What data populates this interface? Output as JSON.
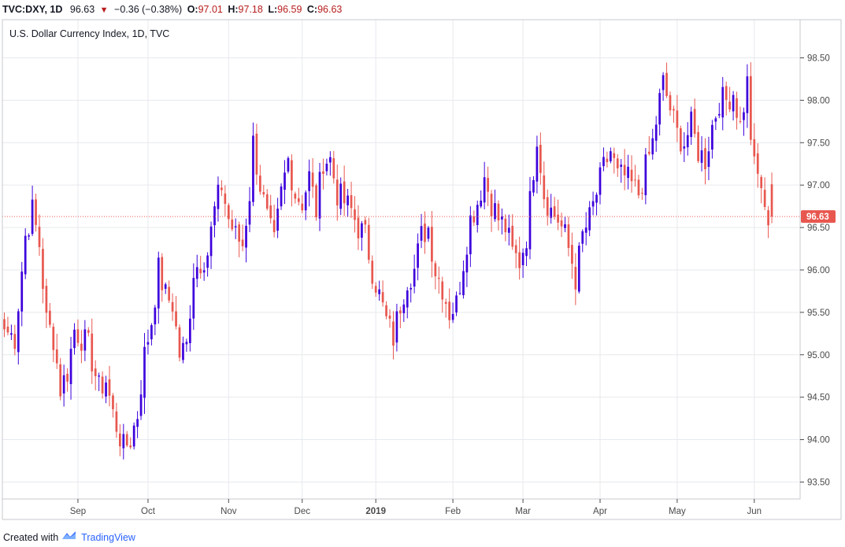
{
  "header": {
    "symbol": "TVC:DXY, 1D",
    "price": "96.63",
    "change": "−0.36 (−0.38%)",
    "open_label": "O:",
    "open": "97.01",
    "high_label": "H:",
    "high": "97.18",
    "low_label": "L:",
    "low": "96.59",
    "close_label": "C:",
    "close": "96.63"
  },
  "footer": {
    "created_with": "Created with",
    "brand": "TradingView"
  },
  "colors": {
    "up": "#3c00dc",
    "down": "#e8574f",
    "grid": "#e6e9ee",
    "price_line": "#e8574f",
    "price_tag": "#e8574f",
    "brand": "#2962ff"
  },
  "chart_data": {
    "type": "candlestick",
    "title": "U.S. Dollar Currency Index, 1D, TVC",
    "ylim": [
      93.3,
      98.95
    ],
    "y_ticks": [
      "98.50",
      "98.00",
      "97.50",
      "97.00",
      "96.50",
      "96.00",
      "95.50",
      "95.00",
      "94.50",
      "94.00",
      "93.50"
    ],
    "x_labels": [
      {
        "text": "Sep",
        "index": 21,
        "bold": false
      },
      {
        "text": "Oct",
        "index": 41,
        "bold": false
      },
      {
        "text": "Nov",
        "index": 64,
        "bold": false
      },
      {
        "text": "Dec",
        "index": 85,
        "bold": false
      },
      {
        "text": "2019",
        "index": 106,
        "bold": true
      },
      {
        "text": "Feb",
        "index": 128,
        "bold": false
      },
      {
        "text": "Mar",
        "index": 148,
        "bold": false
      },
      {
        "text": "Apr",
        "index": 170,
        "bold": false
      },
      {
        "text": "May",
        "index": 192,
        "bold": false
      },
      {
        "text": "Jun",
        "index": 214,
        "bold": false
      }
    ],
    "last_price": 96.63,
    "last_price_label": "96.63",
    "close_key_points": [
      [
        0,
        95.3
      ],
      [
        3,
        95.2
      ],
      [
        6,
        96.4
      ],
      [
        8,
        96.7
      ],
      [
        10,
        96.3
      ],
      [
        12,
        95.4
      ],
      [
        14,
        95.2
      ],
      [
        16,
        94.6
      ],
      [
        18,
        94.8
      ],
      [
        20,
        95.3
      ],
      [
        22,
        95.2
      ],
      [
        24,
        95.1
      ],
      [
        27,
        94.6
      ],
      [
        29,
        94.7
      ],
      [
        31,
        94.3
      ],
      [
        34,
        93.9
      ],
      [
        36,
        94.0
      ],
      [
        38,
        94.3
      ],
      [
        40,
        95.0
      ],
      [
        42,
        95.4
      ],
      [
        44,
        96.0
      ],
      [
        46,
        95.7
      ],
      [
        48,
        95.6
      ],
      [
        50,
        95.0
      ],
      [
        52,
        95.1
      ],
      [
        54,
        96.0
      ],
      [
        56,
        96.1
      ],
      [
        58,
        96.2
      ],
      [
        60,
        96.7
      ],
      [
        62,
        97.0
      ],
      [
        64,
        96.6
      ],
      [
        66,
        96.4
      ],
      [
        68,
        96.3
      ],
      [
        70,
        96.9
      ],
      [
        71,
        97.5
      ],
      [
        73,
        97.0
      ],
      [
        75,
        96.6
      ],
      [
        77,
        96.3
      ],
      [
        79,
        96.9
      ],
      [
        81,
        97.3
      ],
      [
        83,
        96.9
      ],
      [
        85,
        96.8
      ],
      [
        87,
        97.1
      ],
      [
        89,
        96.7
      ],
      [
        91,
        97.3
      ],
      [
        93,
        97.3
      ],
      [
        95,
        96.9
      ],
      [
        97,
        96.8
      ],
      [
        99,
        96.7
      ],
      [
        101,
        96.5
      ],
      [
        103,
        96.4
      ],
      [
        105,
        96.0
      ],
      [
        107,
        95.7
      ],
      [
        109,
        95.4
      ],
      [
        111,
        95.2
      ],
      [
        113,
        95.6
      ],
      [
        115,
        95.9
      ],
      [
        117,
        96.0
      ],
      [
        119,
        96.4
      ],
      [
        121,
        96.5
      ],
      [
        123,
        96.0
      ],
      [
        125,
        95.8
      ],
      [
        127,
        95.5
      ],
      [
        129,
        95.6
      ],
      [
        131,
        96.1
      ],
      [
        133,
        96.6
      ],
      [
        135,
        96.8
      ],
      [
        137,
        97.1
      ],
      [
        139,
        96.8
      ],
      [
        141,
        96.6
      ],
      [
        143,
        96.5
      ],
      [
        145,
        96.2
      ],
      [
        147,
        96.1
      ],
      [
        149,
        96.4
      ],
      [
        151,
        97.2
      ],
      [
        152,
        97.6
      ],
      [
        154,
        96.9
      ],
      [
        156,
        96.7
      ],
      [
        158,
        96.6
      ],
      [
        160,
        96.4
      ],
      [
        162,
        96.1
      ],
      [
        163,
        95.9
      ],
      [
        165,
        96.4
      ],
      [
        167,
        96.6
      ],
      [
        169,
        96.9
      ],
      [
        171,
        97.2
      ],
      [
        173,
        97.4
      ],
      [
        175,
        97.1
      ],
      [
        177,
        97.1
      ],
      [
        179,
        97.0
      ],
      [
        181,
        96.9
      ],
      [
        183,
        97.2
      ],
      [
        185,
        97.5
      ],
      [
        187,
        98.0
      ],
      [
        188,
        98.2
      ],
      [
        190,
        97.9
      ],
      [
        192,
        97.6
      ],
      [
        194,
        97.5
      ],
      [
        196,
        97.7
      ],
      [
        198,
        97.4
      ],
      [
        200,
        97.3
      ],
      [
        202,
        97.7
      ],
      [
        204,
        98.0
      ],
      [
        206,
        98.0
      ],
      [
        208,
        98.1
      ],
      [
        210,
        97.7
      ],
      [
        212,
        98.2
      ],
      [
        213,
        97.6
      ],
      [
        214,
        97.2
      ],
      [
        216,
        97.0
      ],
      [
        217,
        96.63
      ]
    ]
  }
}
